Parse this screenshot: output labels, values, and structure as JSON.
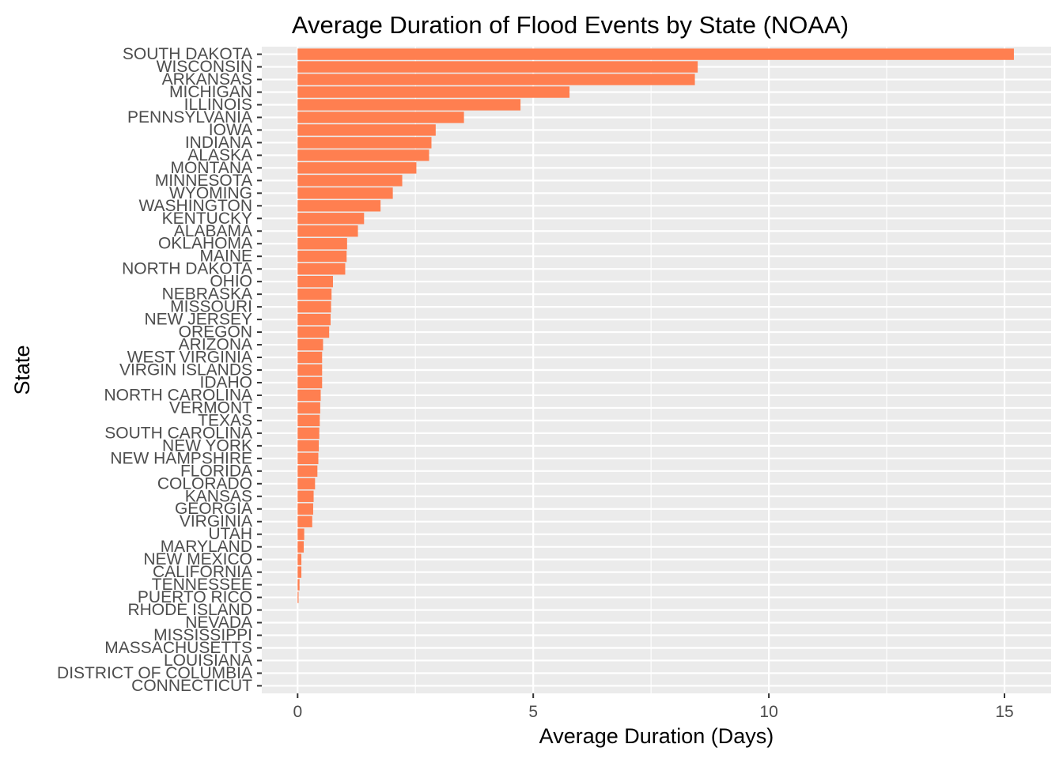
{
  "chart_data": {
    "type": "bar",
    "orientation": "horizontal",
    "title": "Average Duration of Flood Events by State (NOAA)",
    "xlabel": "Average Duration (Days)",
    "ylabel": "State",
    "xlim": [
      -0.76,
      15.99
    ],
    "xticks": [
      0,
      5,
      10,
      15
    ],
    "grid": true,
    "bar_color": "#FF7F50",
    "panel_color": "#EBEBEB",
    "grid_color": "#FFFFFF",
    "categories": [
      "SOUTH DAKOTA",
      "WISCONSIN",
      "ARKANSAS",
      "MICHIGAN",
      "ILLINOIS",
      "PENNSYLVANIA",
      "IOWA",
      "INDIANA",
      "ALASKA",
      "MONTANA",
      "MINNESOTA",
      "WYOMING",
      "WASHINGTON",
      "KENTUCKY",
      "ALABAMA",
      "OKLAHOMA",
      "MAINE",
      "NORTH DAKOTA",
      "OHIO",
      "NEBRASKA",
      "MISSOURI",
      "NEW JERSEY",
      "OREGON",
      "ARIZONA",
      "WEST VIRGINIA",
      "VIRGIN ISLANDS",
      "IDAHO",
      "NORTH CAROLINA",
      "VERMONT",
      "TEXAS",
      "SOUTH CAROLINA",
      "NEW YORK",
      "NEW HAMPSHIRE",
      "FLORIDA",
      "COLORADO",
      "KANSAS",
      "GEORGIA",
      "VIRGINIA",
      "UTAH",
      "MARYLAND",
      "NEW MEXICO",
      "CALIFORNIA",
      "TENNESSEE",
      "PUERTO RICO",
      "RHODE ISLAND",
      "NEVADA",
      "MISSISSIPPI",
      "MASSACHUSETTS",
      "LOUISIANA",
      "DISTRICT OF COLUMBIA",
      "CONNECTICUT"
    ],
    "values": [
      15.2,
      8.49,
      8.43,
      5.77,
      4.73,
      3.53,
      2.93,
      2.84,
      2.79,
      2.52,
      2.22,
      2.02,
      1.76,
      1.41,
      1.28,
      1.05,
      1.04,
      1.01,
      0.75,
      0.72,
      0.71,
      0.7,
      0.67,
      0.54,
      0.52,
      0.52,
      0.52,
      0.49,
      0.48,
      0.47,
      0.46,
      0.45,
      0.44,
      0.42,
      0.37,
      0.34,
      0.33,
      0.31,
      0.14,
      0.13,
      0.08,
      0.08,
      0.04,
      0.02,
      0.0,
      0.0,
      0.0,
      0.0,
      0.0,
      0.0,
      0.0
    ]
  }
}
